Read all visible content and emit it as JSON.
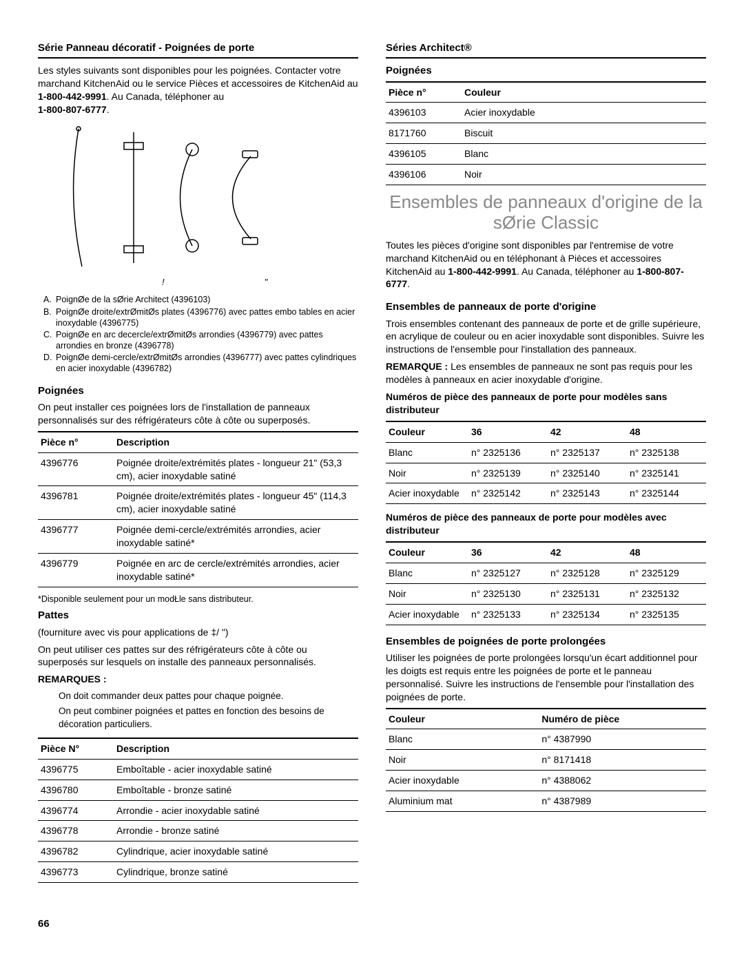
{
  "left": {
    "section_title": "Série Panneau décoratif - Poignées de porte",
    "intro_1": "Les styles suivants sont disponibles pour les poignées. Contacter votre marchand KitchenAid ou le service Pièces et accessoires de KitchenAid au ",
    "phone1": "1-800-442-9991",
    "intro_2": ". Au Canada, téléphoner au ",
    "phone2": "1-800-807-6777",
    "intro_3": ".",
    "legend": [
      {
        "l": "A.",
        "t": "PoignØe de la sØrie Architect (4396103)"
      },
      {
        "l": "B.",
        "t": "PoignØe droite/extrØmitØs plates (4396776) avec pattes embo tables en acier inoxydable (4396775)"
      },
      {
        "l": "C.",
        "t": "PoignØe en arc decercle/extrØmitØs arrondies (4396779) avec pattes arrondies en bronze (4396778)"
      },
      {
        "l": "D.",
        "t": "PoignØe demi-cercle/extrØmitØs arrondies (4396777) avec pattes cylindriques en acier inoxydable (4396782)"
      }
    ],
    "poignees_h": "Poignées",
    "poignees_p": "On peut installer ces poignées lors de l'installation de panneaux personnalisés sur des réfrigérateurs côte à côte ou superposés.",
    "t1_headers": [
      "Pièce n°",
      "Description"
    ],
    "t1_rows": [
      [
        "4396776",
        "Poignée droite/extrémités plates - longueur 21\" (53,3 cm), acier inoxydable satiné"
      ],
      [
        "4396781",
        "Poignée droite/extrémités plates - longueur 45\" (114,3 cm), acier inoxydable satiné"
      ],
      [
        "4396777",
        "Poignée demi-cercle/extrémités arrondies, acier inoxydable satiné*"
      ],
      [
        "4396779",
        "Poignée en arc de cercle/extrémités arrondies, acier inoxydable satiné*"
      ]
    ],
    "footnote": "*Disponible seulement pour un modŁle sans distributeur.",
    "pattes_h": "Pattes",
    "pattes_p1": "(fourniture avec vis pour applications de ‡/ \")",
    "pattes_p2": "On peut utiliser ces pattes sur des réfrigérateurs côte à côte ou superposés sur lesquels on installe des panneaux personnalisés.",
    "remarques_h": "REMARQUES :",
    "remarques": [
      "On doit commander deux pattes pour chaque poignée.",
      "On peut combiner poignées et pattes en fonction des besoins de décoration particuliers."
    ],
    "t2_headers": [
      "Pièce N°",
      "Description"
    ],
    "t2_rows": [
      [
        "4396775",
        "Emboîtable - acier inoxydable satiné"
      ],
      [
        "4396780",
        "Emboîtable - bronze satiné"
      ],
      [
        "4396774",
        "Arrondie - acier inoxydable satiné"
      ],
      [
        "4396778",
        "Arrondie - bronze satiné"
      ],
      [
        "4396782",
        "Cylindrique, acier inoxydable satiné"
      ],
      [
        "4396773",
        "Cylindrique, bronze satiné"
      ]
    ],
    "diag_label1": "!",
    "diag_label2": "\""
  },
  "right": {
    "section_title": "Séries Architect®",
    "poignees_h": "Poignées",
    "t3_headers": [
      "Pièce n°",
      "Couleur"
    ],
    "t3_rows": [
      [
        "4396103",
        "Acier inoxydable"
      ],
      [
        "8171760",
        "Biscuit"
      ],
      [
        "4396105",
        "Blanc"
      ],
      [
        "4396106",
        "Noir"
      ]
    ],
    "big_title": "Ensembles de panneaux d'origine de la sØrie Classic",
    "intro_1": "Toutes les pièces d'origine sont disponibles par l'entremise de votre marchand KitchenAid ou en téléphonant à Pièces et accessoires KitchenAid au ",
    "phone1": "1-800-442-9991",
    "intro_2": ". Au Canada, téléphoner au ",
    "phone2": "1-800-807-6777",
    "intro_3": ".",
    "sub1_h": "Ensembles de panneaux de porte d'origine",
    "sub1_p": "Trois ensembles contenant des panneaux de porte et de grille supérieure, en acrylique de couleur ou en acier inoxydable sont disponibles. Suivre les instructions de l'ensemble pour l'installation des panneaux.",
    "remarque_label": "REMARQUE :",
    "remarque_text": " Les ensembles de panneaux ne sont pas requis pour les modèles à panneaux en acier inoxydable d'origine.",
    "t4_title": "Numéros de pièce des panneaux de porte pour modèles sans distributeur",
    "t4_headers": [
      "Couleur",
      "36",
      "42",
      "48"
    ],
    "t4_rows": [
      [
        "Blanc",
        "n° 2325136",
        "n° 2325137",
        "n° 2325138"
      ],
      [
        "Noir",
        "n° 2325139",
        "n° 2325140",
        "n° 2325141"
      ],
      [
        "Acier inoxydable",
        "n° 2325142",
        "n° 2325143",
        "n° 2325144"
      ]
    ],
    "t5_title": "Numéros de pièce des panneaux de porte pour modèles avec distributeur",
    "t5_headers": [
      "Couleur",
      "36",
      "42",
      "48"
    ],
    "t5_rows": [
      [
        "Blanc",
        "n° 2325127",
        "n° 2325128",
        "n° 2325129"
      ],
      [
        "Noir",
        "n° 2325130",
        "n° 2325131",
        "n° 2325132"
      ],
      [
        "Acier inoxydable",
        "n° 2325133",
        "n° 2325134",
        "n° 2325135"
      ]
    ],
    "sub2_h": "Ensembles de poignées de porte prolongées",
    "sub2_p": "Utiliser les poignées de porte prolongées lorsqu'un écart additionnel pour les doigts est requis entre les poignées de porte et le panneau personnalisé. Suivre les instructions de l'ensemble pour l'installation des poignées de porte.",
    "t6_headers": [
      "Couleur",
      "Numéro de pièce"
    ],
    "t6_rows": [
      [
        "Blanc",
        "n° 4387990"
      ],
      [
        "Noir",
        "n° 8171418"
      ],
      [
        "Acier inoxydable",
        "n° 4388062"
      ],
      [
        "Aluminium mat",
        "n° 4387989"
      ]
    ]
  },
  "page_number": "66"
}
